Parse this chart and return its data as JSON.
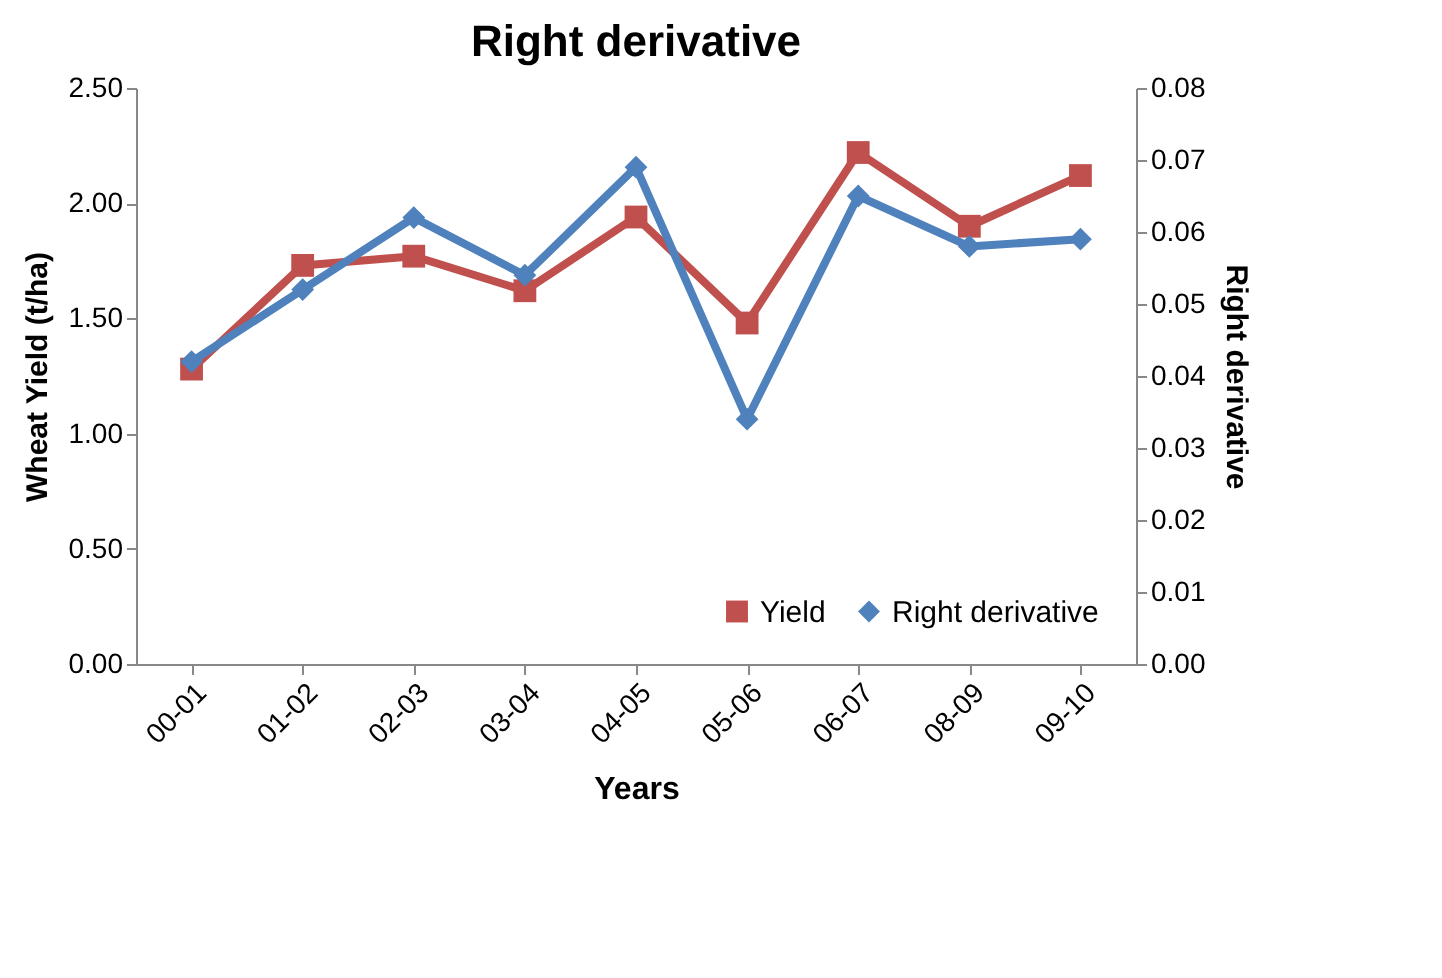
{
  "chart_data": {
    "type": "line",
    "title": "Right derivative",
    "xlabel": "Years",
    "ylabel": "Wheat Yield (t/ha)",
    "y2label": "Right derivative",
    "categories": [
      "00-01",
      "01-02",
      "02-03",
      "03-04",
      "04-05",
      "05-06",
      "06-07",
      "08-09",
      "09-10"
    ],
    "series": [
      {
        "name": "Yield",
        "color": "#c0504d",
        "marker": "square",
        "values": [
          1.28,
          1.73,
          1.77,
          1.62,
          1.94,
          1.48,
          2.22,
          1.9,
          2.12
        ]
      },
      {
        "name": "Right derivative",
        "color": "#4f81bd",
        "marker": "diamond",
        "axis": "y2",
        "values": [
          0.042,
          0.052,
          0.062,
          0.054,
          0.069,
          0.034,
          0.065,
          0.058,
          0.059
        ]
      }
    ],
    "ylim": [
      0,
      2.5
    ],
    "yticks": [
      {
        "value": 0,
        "label": "0.00"
      },
      {
        "value": 0.5,
        "label": "0.50"
      },
      {
        "value": 1,
        "label": "1.00"
      },
      {
        "value": 1.5,
        "label": "1.50"
      },
      {
        "value": 2,
        "label": "2.00"
      },
      {
        "value": 2.5,
        "label": "2.50"
      }
    ],
    "y2lim": [
      0,
      0.08
    ],
    "y2ticks": [
      {
        "value": 0,
        "label": "0.00"
      },
      {
        "value": 0.01,
        "label": "0.01"
      },
      {
        "value": 0.02,
        "label": "0.02"
      },
      {
        "value": 0.03,
        "label": "0.03"
      },
      {
        "value": 0.04,
        "label": "0.04"
      },
      {
        "value": 0.05,
        "label": "0.05"
      },
      {
        "value": 0.06,
        "label": "0.06"
      },
      {
        "value": 0.07,
        "label": "0.07"
      },
      {
        "value": 0.08,
        "label": "0.08"
      }
    ],
    "grid": false,
    "legend": "bottom right"
  }
}
